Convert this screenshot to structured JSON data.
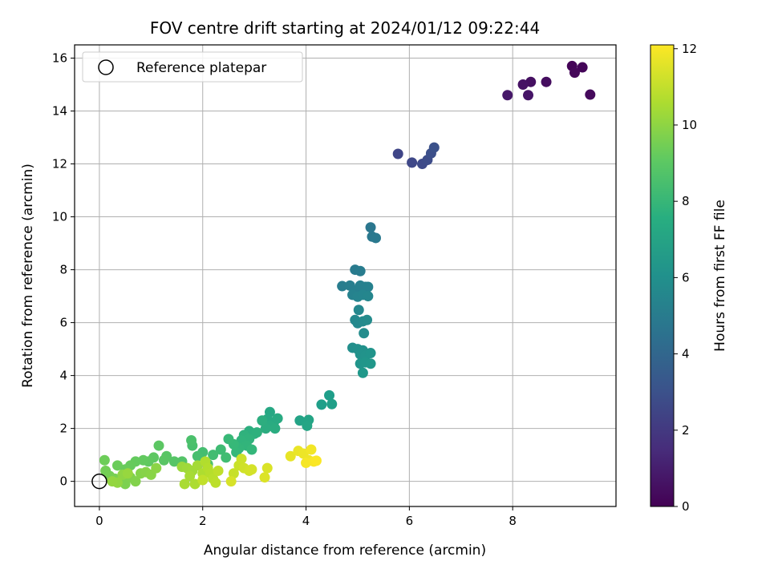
{
  "chart_data": {
    "type": "scatter",
    "title": "FOV centre drift starting at 2024/01/12 09:22:44",
    "xlabel": "Angular distance from reference (arcmin)",
    "ylabel": "Rotation from reference (arcmin)",
    "xlim": [
      -0.48,
      10.0
    ],
    "ylim": [
      -0.95,
      16.5
    ],
    "xticks": [
      0,
      2,
      4,
      6,
      8
    ],
    "yticks": [
      0,
      2,
      4,
      6,
      8,
      10,
      12,
      14,
      16
    ],
    "grid": true,
    "legend": {
      "placement": "top-left",
      "entries": [
        "Reference platepar"
      ]
    },
    "colormap": "viridis",
    "colorbar": {
      "label": "Hours from first FF file",
      "range": [
        0,
        12.1
      ],
      "ticks": [
        0,
        2,
        4,
        6,
        8,
        10,
        12
      ]
    },
    "reference_point": {
      "name": "Reference platepar",
      "x": 0,
      "y": 0
    },
    "series": [
      {
        "points": [
          [
            9.15,
            15.7,
            0.1
          ],
          [
            9.35,
            15.65,
            0.15
          ],
          [
            9.2,
            15.45,
            0.2
          ],
          [
            9.5,
            14.62,
            0.3
          ],
          [
            8.65,
            15.1,
            0.4
          ],
          [
            8.35,
            15.1,
            0.5
          ],
          [
            8.2,
            15.0,
            0.6
          ],
          [
            8.3,
            14.6,
            0.7
          ],
          [
            7.9,
            14.6,
            0.8
          ],
          [
            5.78,
            12.38,
            2.5
          ],
          [
            6.05,
            12.05,
            2.6
          ],
          [
            6.25,
            12.0,
            2.7
          ],
          [
            6.35,
            12.15,
            2.8
          ],
          [
            6.42,
            12.4,
            2.9
          ],
          [
            6.48,
            12.62,
            3.0
          ],
          [
            5.25,
            9.6,
            4.8
          ],
          [
            5.28,
            9.25,
            4.85
          ],
          [
            5.35,
            9.2,
            4.9
          ],
          [
            4.95,
            8.0,
            5.0
          ],
          [
            5.05,
            7.95,
            5.05
          ],
          [
            4.7,
            7.38,
            5.1
          ],
          [
            4.85,
            7.4,
            5.15
          ],
          [
            4.95,
            7.2,
            5.2
          ],
          [
            5.05,
            7.4,
            5.25
          ],
          [
            5.15,
            7.35,
            5.3
          ],
          [
            5.2,
            7.35,
            5.35
          ],
          [
            4.9,
            7.05,
            5.4
          ],
          [
            5.0,
            6.98,
            5.45
          ],
          [
            5.1,
            7.05,
            5.5
          ],
          [
            5.2,
            7.0,
            5.55
          ],
          [
            5.02,
            6.48,
            5.6
          ],
          [
            4.95,
            6.1,
            5.65
          ],
          [
            5.0,
            5.98,
            5.7
          ],
          [
            5.1,
            6.05,
            5.75
          ],
          [
            5.18,
            6.1,
            5.8
          ],
          [
            5.12,
            5.6,
            5.85
          ],
          [
            4.9,
            5.05,
            6.0
          ],
          [
            5.0,
            5.0,
            6.05
          ],
          [
            5.1,
            4.95,
            6.1
          ],
          [
            5.05,
            4.8,
            6.15
          ],
          [
            5.15,
            4.75,
            6.2
          ],
          [
            5.25,
            4.85,
            6.25
          ],
          [
            5.05,
            4.45,
            6.3
          ],
          [
            5.15,
            4.5,
            6.35
          ],
          [
            5.25,
            4.45,
            6.4
          ],
          [
            5.1,
            4.1,
            6.45
          ],
          [
            4.45,
            3.25,
            6.7
          ],
          [
            4.3,
            2.9,
            6.75
          ],
          [
            4.5,
            2.92,
            6.8
          ],
          [
            3.88,
            2.3,
            7.0
          ],
          [
            4.05,
            2.32,
            7.05
          ],
          [
            4.02,
            2.1,
            7.1
          ],
          [
            3.3,
            2.62,
            7.2
          ],
          [
            3.25,
            2.35,
            7.25
          ],
          [
            3.38,
            2.25,
            7.3
          ],
          [
            3.45,
            2.38,
            7.35
          ],
          [
            3.3,
            2.1,
            7.4
          ],
          [
            3.4,
            2.0,
            7.45
          ],
          [
            3.22,
            2.0,
            7.5
          ],
          [
            3.15,
            2.3,
            7.55
          ],
          [
            2.9,
            1.9,
            7.6
          ],
          [
            3.0,
            1.8,
            7.65
          ],
          [
            3.05,
            1.85,
            7.7
          ],
          [
            2.8,
            1.75,
            7.75
          ],
          [
            2.9,
            1.6,
            7.8
          ],
          [
            2.75,
            1.55,
            7.85
          ],
          [
            2.85,
            1.35,
            7.9
          ],
          [
            2.7,
            1.25,
            7.95
          ],
          [
            2.95,
            1.2,
            8.0
          ],
          [
            2.65,
            1.1,
            8.05
          ],
          [
            2.6,
            1.4,
            8.1
          ],
          [
            2.5,
            1.6,
            8.15
          ],
          [
            2.35,
            1.2,
            8.3
          ],
          [
            2.45,
            0.9,
            8.35
          ],
          [
            2.2,
            1.0,
            8.4
          ],
          [
            2.0,
            1.1,
            8.45
          ],
          [
            1.9,
            0.95,
            8.5
          ],
          [
            1.8,
            1.35,
            8.55
          ],
          [
            1.78,
            1.55,
            8.6
          ],
          [
            2.1,
            0.65,
            8.65
          ],
          [
            1.6,
            0.75,
            8.8
          ],
          [
            1.45,
            0.75,
            8.85
          ],
          [
            1.3,
            0.95,
            8.9
          ],
          [
            1.25,
            0.8,
            8.95
          ],
          [
            1.15,
            1.35,
            9.0
          ],
          [
            1.05,
            0.9,
            9.05
          ],
          [
            0.95,
            0.75,
            9.1
          ],
          [
            0.85,
            0.8,
            9.15
          ],
          [
            0.7,
            0.75,
            9.2
          ],
          [
            0.6,
            0.6,
            9.25
          ],
          [
            0.5,
            0.45,
            9.3
          ],
          [
            0.35,
            0.6,
            9.35
          ],
          [
            0.1,
            0.8,
            9.4
          ],
          [
            0.12,
            0.4,
            9.5
          ],
          [
            0.2,
            0.2,
            9.55
          ],
          [
            0.3,
            0.1,
            9.6
          ],
          [
            0.4,
            0.05,
            9.65
          ],
          [
            0.5,
            -0.1,
            9.7
          ],
          [
            0.6,
            0.15,
            9.75
          ],
          [
            0.7,
            0.0,
            9.8
          ],
          [
            0.8,
            0.3,
            9.85
          ],
          [
            0.9,
            0.35,
            9.9
          ],
          [
            1.0,
            0.25,
            9.95
          ],
          [
            1.1,
            0.5,
            10.0
          ],
          [
            0.45,
            0.25,
            10.05
          ],
          [
            0.35,
            -0.05,
            10.1
          ],
          [
            0.25,
            0.0,
            10.15
          ],
          [
            0.55,
            0.3,
            10.2
          ],
          [
            1.6,
            0.55,
            10.3
          ],
          [
            1.7,
            0.5,
            10.35
          ],
          [
            1.8,
            0.4,
            10.4
          ],
          [
            1.9,
            0.6,
            10.45
          ],
          [
            1.75,
            0.2,
            10.5
          ],
          [
            1.65,
            -0.1,
            10.55
          ],
          [
            1.85,
            -0.1,
            10.6
          ],
          [
            2.0,
            0.3,
            10.65
          ],
          [
            2.05,
            0.75,
            10.7
          ],
          [
            2.1,
            0.5,
            10.75
          ],
          [
            2.15,
            0.3,
            10.8
          ],
          [
            2.2,
            0.1,
            10.85
          ],
          [
            2.25,
            -0.05,
            10.9
          ],
          [
            2.3,
            0.4,
            10.95
          ],
          [
            2.0,
            0.05,
            11.0
          ],
          [
            2.6,
            0.3,
            11.1
          ],
          [
            2.7,
            0.6,
            11.15
          ],
          [
            2.75,
            0.85,
            11.2
          ],
          [
            2.8,
            0.5,
            11.25
          ],
          [
            2.9,
            0.4,
            11.3
          ],
          [
            2.95,
            0.45,
            11.35
          ],
          [
            2.55,
            0.0,
            11.4
          ],
          [
            3.25,
            0.5,
            11.45
          ],
          [
            3.2,
            0.15,
            11.5
          ],
          [
            3.7,
            0.95,
            11.7
          ],
          [
            3.85,
            1.15,
            11.75
          ],
          [
            3.95,
            1.05,
            11.8
          ],
          [
            4.05,
            0.8,
            11.85
          ],
          [
            4.1,
            1.2,
            11.9
          ],
          [
            4.0,
            0.7,
            11.95
          ],
          [
            4.15,
            0.75,
            12.0
          ],
          [
            4.2,
            0.78,
            12.05
          ]
        ]
      }
    ]
  }
}
